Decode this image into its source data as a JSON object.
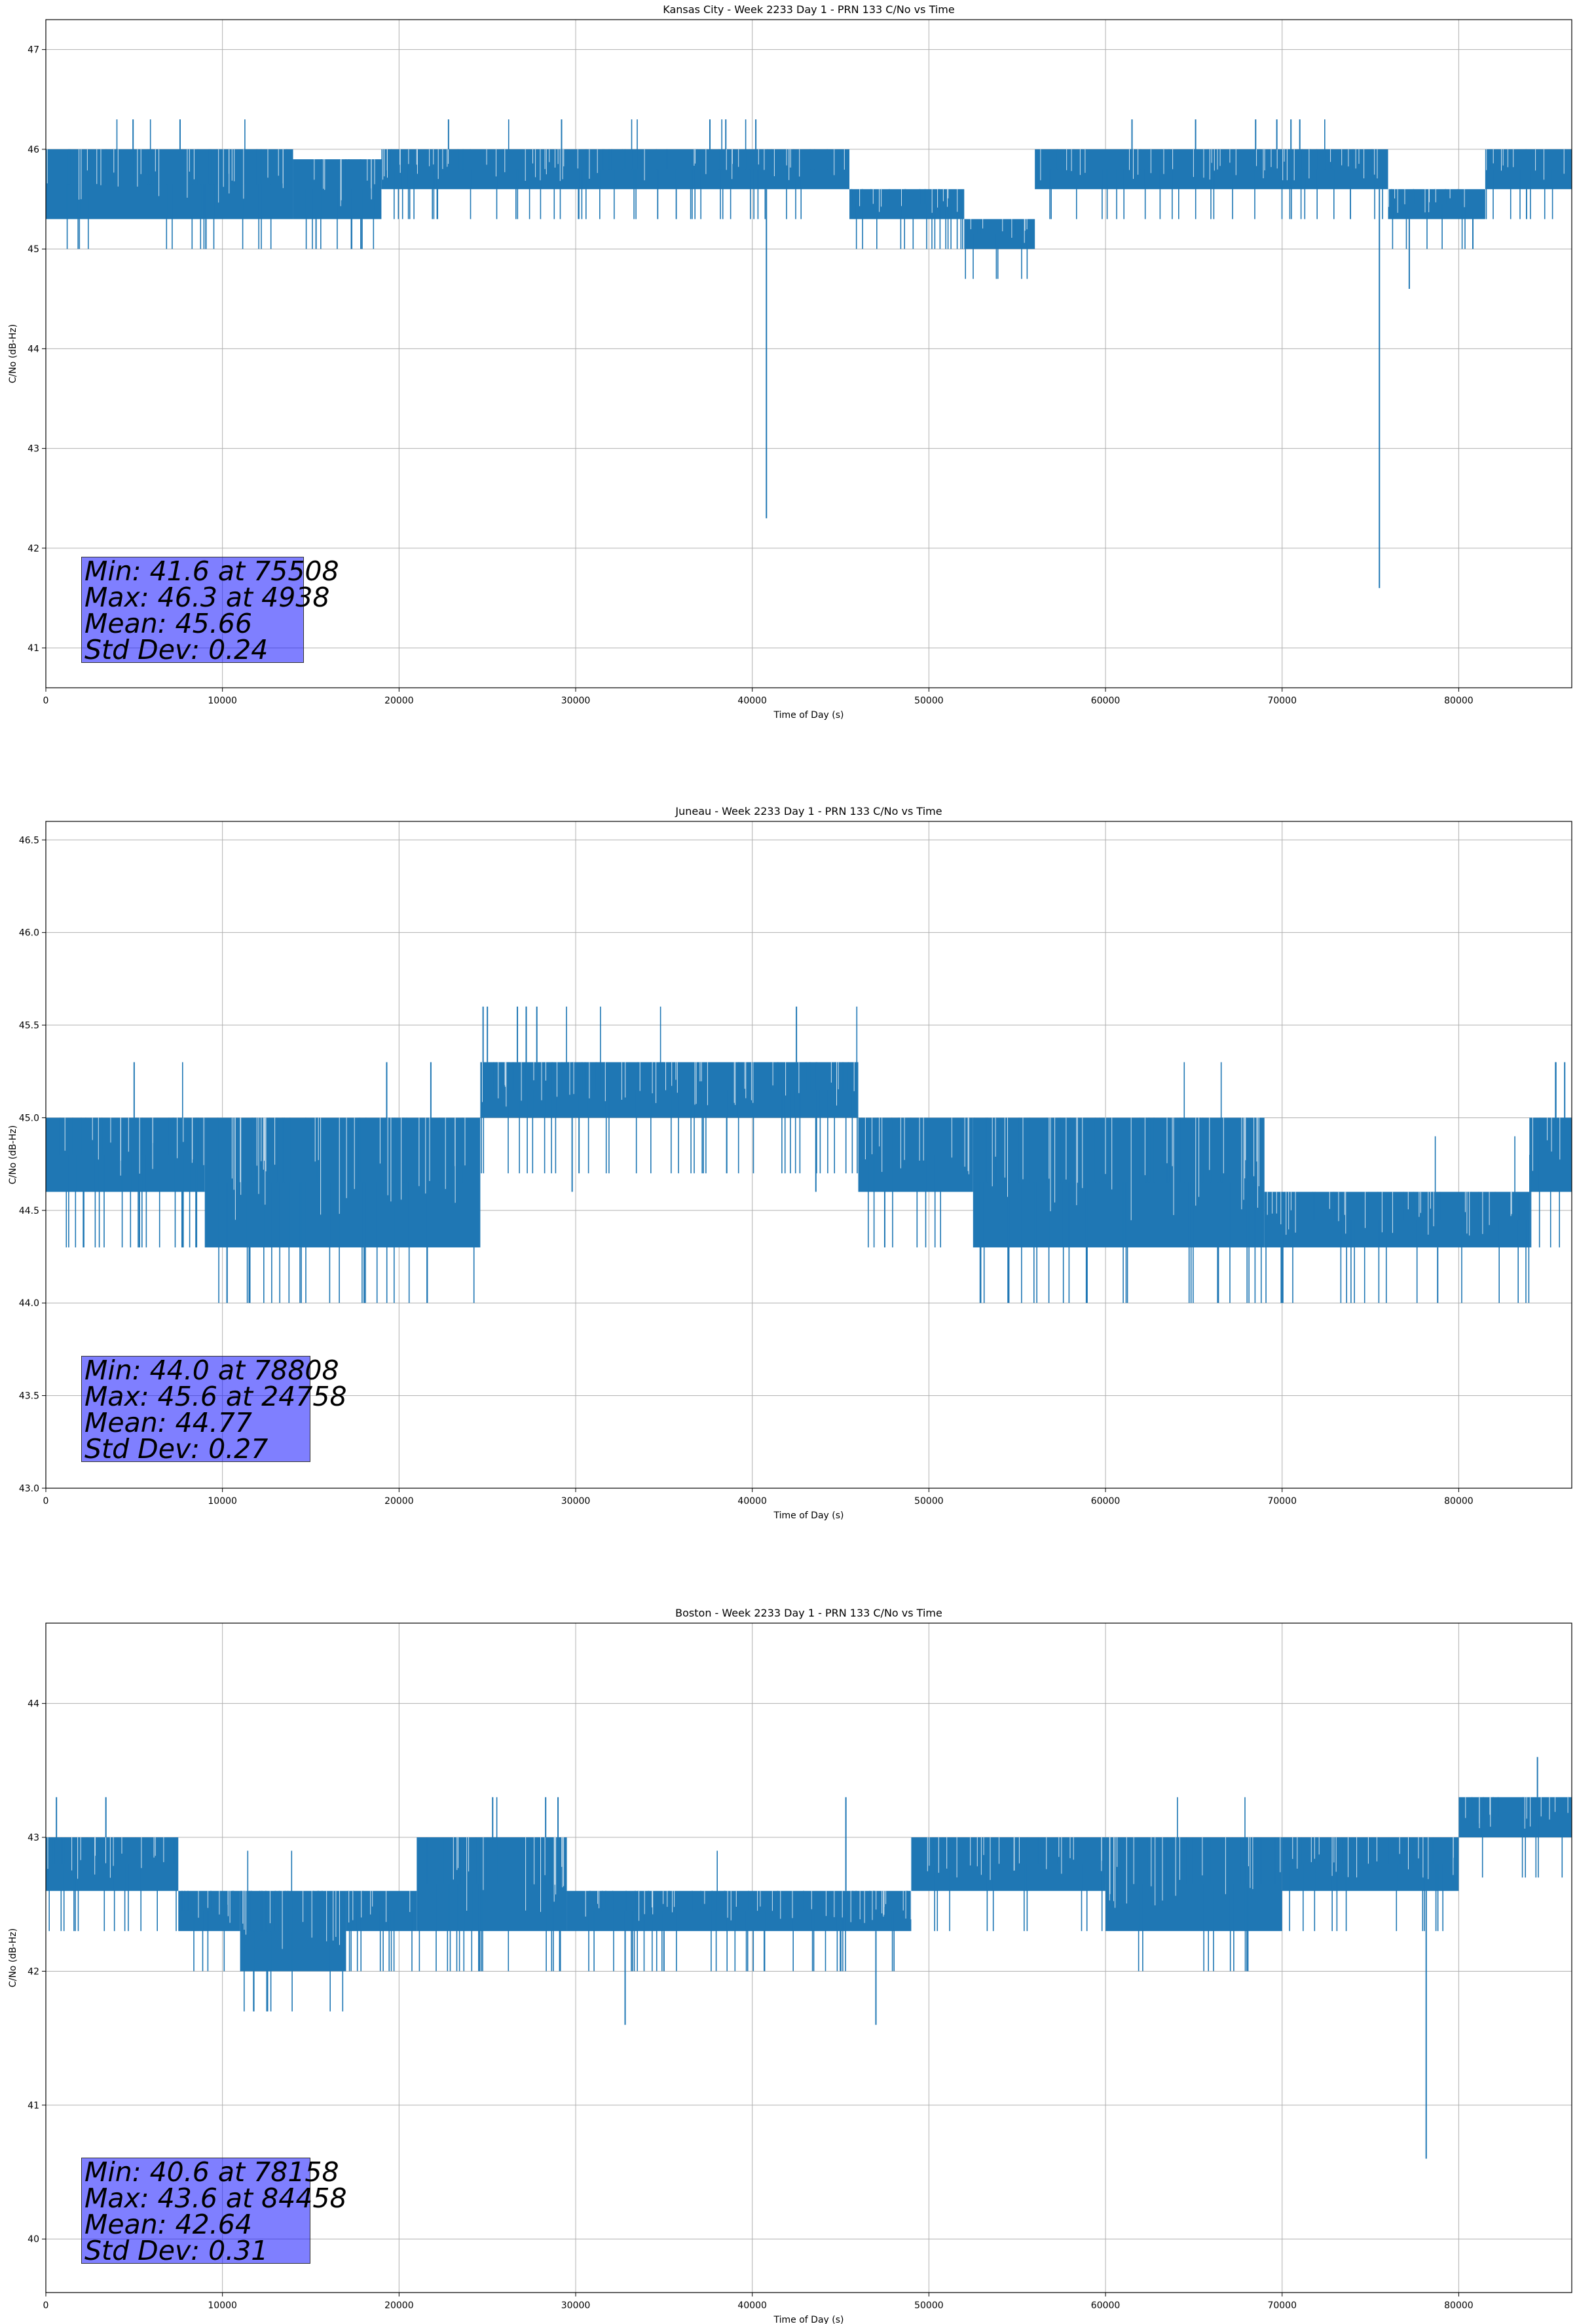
{
  "chart_data": [
    {
      "type": "line",
      "title": "Kansas City - Week 2233 Day 1 - PRN 133 C/No vs Time",
      "xlabel": "Time of Day (s)",
      "ylabel": "C/No (dB-Hz)",
      "xlim": [
        0,
        86400
      ],
      "ylim": [
        40.6,
        47.3
      ],
      "xticks": [
        0,
        10000,
        20000,
        30000,
        40000,
        50000,
        60000,
        70000,
        80000
      ],
      "yticks": [
        41,
        42,
        43,
        44,
        45,
        46,
        47
      ],
      "ytick_labels": [
        "41",
        "42",
        "43",
        "44",
        "45",
        "46",
        "47"
      ],
      "grid": true,
      "color": "#1f77b4",
      "band_segments": [
        {
          "x": [
            0,
            14000
          ],
          "low": 45.3,
          "high": 46.0
        },
        {
          "x": [
            14000,
            19000
          ],
          "low": 45.3,
          "high": 45.9
        },
        {
          "x": [
            19000,
            45500
          ],
          "low": 45.6,
          "high": 46.0
        },
        {
          "x": [
            45500,
            52000
          ],
          "low": 45.3,
          "high": 45.6
        },
        {
          "x": [
            52000,
            56000
          ],
          "low": 45.0,
          "high": 45.3
        },
        {
          "x": [
            56000,
            76000
          ],
          "low": 45.6,
          "high": 46.0
        },
        {
          "x": [
            76000,
            81500
          ],
          "low": 45.3,
          "high": 45.6
        },
        {
          "x": [
            81500,
            86400
          ],
          "low": 45.6,
          "high": 46.0
        }
      ],
      "spikes": [
        {
          "x": 4938,
          "y": 46.3
        },
        {
          "x": 7600,
          "y": 46.3
        },
        {
          "x": 22800,
          "y": 46.3
        },
        {
          "x": 29200,
          "y": 46.3
        },
        {
          "x": 37600,
          "y": 46.3
        },
        {
          "x": 38500,
          "y": 46.3
        },
        {
          "x": 40200,
          "y": 46.3
        },
        {
          "x": 61500,
          "y": 46.3
        },
        {
          "x": 65100,
          "y": 46.3
        },
        {
          "x": 68500,
          "y": 46.3
        },
        {
          "x": 69700,
          "y": 46.3
        },
        {
          "x": 70500,
          "y": 46.3
        },
        {
          "x": 71000,
          "y": 46.3
        },
        {
          "x": 15300,
          "y": 45.0
        },
        {
          "x": 17300,
          "y": 45.0
        },
        {
          "x": 17900,
          "y": 45.0
        },
        {
          "x": 40800,
          "y": 42.3
        },
        {
          "x": 75508,
          "y": 41.6
        },
        {
          "x": 77200,
          "y": 44.6
        },
        {
          "x": 80800,
          "y": 45.0
        }
      ],
      "stats": [
        "Min: 41.6 at 75508",
        "Max: 46.3 at 4938",
        "Mean: 45.66",
        "Std Dev: 0.24"
      ]
    },
    {
      "type": "line",
      "title": "Juneau - Week 2233 Day 1 - PRN 133 C/No vs Time",
      "xlabel": "Time of Day (s)",
      "ylabel": "C/No (dB-Hz)",
      "xlim": [
        0,
        86400
      ],
      "ylim": [
        43.0,
        46.6
      ],
      "xticks": [
        0,
        10000,
        20000,
        30000,
        40000,
        50000,
        60000,
        70000,
        80000
      ],
      "yticks": [
        43.0,
        43.5,
        44.0,
        44.5,
        45.0,
        45.5,
        46.0,
        46.5
      ],
      "ytick_labels": [
        "43.0",
        "43.5",
        "44.0",
        "44.5",
        "45.0",
        "45.5",
        "46.0",
        "46.5"
      ],
      "grid": true,
      "color": "#1f77b4",
      "band_segments": [
        {
          "x": [
            0,
            9000
          ],
          "low": 44.6,
          "high": 45.0
        },
        {
          "x": [
            9000,
            24600
          ],
          "low": 44.3,
          "high": 45.0
        },
        {
          "x": [
            24600,
            46000
          ],
          "low": 45.0,
          "high": 45.3
        },
        {
          "x": [
            46000,
            52500
          ],
          "low": 44.6,
          "high": 45.0
        },
        {
          "x": [
            52500,
            69000
          ],
          "low": 44.3,
          "high": 45.0
        },
        {
          "x": [
            69000,
            84000
          ],
          "low": 44.3,
          "high": 44.6
        },
        {
          "x": [
            84000,
            86400
          ],
          "low": 44.6,
          "high": 45.0
        }
      ],
      "spikes": [
        {
          "x": 5000,
          "y": 45.3
        },
        {
          "x": 19300,
          "y": 45.3
        },
        {
          "x": 21800,
          "y": 45.3
        },
        {
          "x": 24758,
          "y": 45.6
        },
        {
          "x": 25000,
          "y": 45.6
        },
        {
          "x": 26700,
          "y": 45.6
        },
        {
          "x": 27200,
          "y": 45.6
        },
        {
          "x": 27800,
          "y": 45.6
        },
        {
          "x": 42500,
          "y": 45.6
        },
        {
          "x": 85500,
          "y": 45.3
        },
        {
          "x": 86000,
          "y": 45.3
        },
        {
          "x": 29800,
          "y": 44.6
        },
        {
          "x": 43600,
          "y": 44.6
        },
        {
          "x": 5300,
          "y": 44.3
        },
        {
          "x": 17800,
          "y": 44.3
        },
        {
          "x": 47500,
          "y": 44.3
        },
        {
          "x": 78808,
          "y": 44.0
        }
      ],
      "stats": [
        "Min: 44.0 at 78808",
        "Max: 45.6 at 24758",
        "Mean: 44.77",
        "Std Dev: 0.27"
      ]
    },
    {
      "type": "line",
      "title": "Boston - Week 2233 Day 1 - PRN 133 C/No vs Time",
      "xlabel": "Time of Day (s)",
      "ylabel": "C/No (dB-Hz)",
      "xlim": [
        0,
        86400
      ],
      "ylim": [
        39.6,
        44.6
      ],
      "xticks": [
        0,
        10000,
        20000,
        30000,
        40000,
        50000,
        60000,
        70000,
        80000
      ],
      "yticks": [
        40,
        41,
        42,
        43,
        44
      ],
      "ytick_labels": [
        "40",
        "41",
        "42",
        "43",
        "44"
      ],
      "grid": true,
      "color": "#1f77b4",
      "band_segments": [
        {
          "x": [
            0,
            7500
          ],
          "low": 42.6,
          "high": 43.0
        },
        {
          "x": [
            7500,
            11000
          ],
          "low": 42.3,
          "high": 42.6
        },
        {
          "x": [
            11000,
            17000
          ],
          "low": 42.0,
          "high": 42.6
        },
        {
          "x": [
            17000,
            21000
          ],
          "low": 42.3,
          "high": 42.6
        },
        {
          "x": [
            21000,
            29500
          ],
          "low": 42.3,
          "high": 43.0
        },
        {
          "x": [
            29500,
            49000
          ],
          "low": 42.3,
          "high": 42.6
        },
        {
          "x": [
            49000,
            60000
          ],
          "low": 42.6,
          "high": 43.0
        },
        {
          "x": [
            60000,
            70000
          ],
          "low": 42.3,
          "high": 43.0
        },
        {
          "x": [
            70000,
            80000
          ],
          "low": 42.6,
          "high": 43.0
        },
        {
          "x": [
            80000,
            86400
          ],
          "low": 43.0,
          "high": 43.3
        }
      ],
      "spikes": [
        {
          "x": 600,
          "y": 43.3
        },
        {
          "x": 3400,
          "y": 43.3
        },
        {
          "x": 25300,
          "y": 43.3
        },
        {
          "x": 28300,
          "y": 43.3
        },
        {
          "x": 29000,
          "y": 43.3
        },
        {
          "x": 45300,
          "y": 43.3
        },
        {
          "x": 84458,
          "y": 43.6
        },
        {
          "x": 35000,
          "y": 42.0
        },
        {
          "x": 32800,
          "y": 41.6
        },
        {
          "x": 47000,
          "y": 41.6
        },
        {
          "x": 78158,
          "y": 40.6
        }
      ],
      "stats": [
        "Min: 40.6 at 78158",
        "Max: 43.6 at 84458",
        "Mean: 42.64",
        "Std Dev: 0.31"
      ]
    }
  ]
}
